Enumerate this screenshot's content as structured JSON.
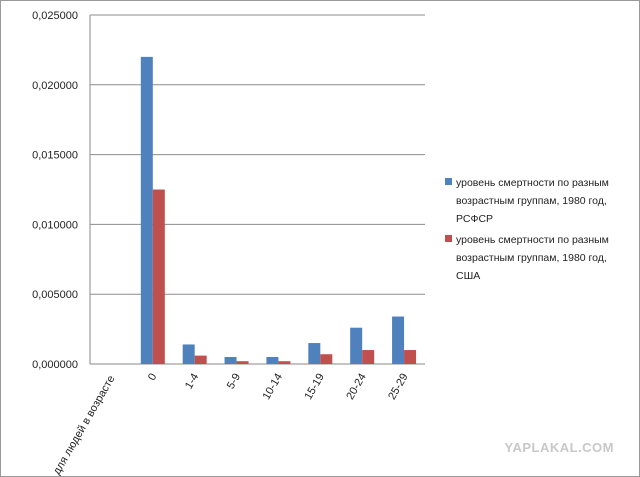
{
  "chart_data": {
    "type": "bar",
    "categories": [
      "0",
      "1-4",
      "5-9",
      "10-14",
      "15-19",
      "20-24",
      "25-29"
    ],
    "category_axis_label": "для людей в возрасте",
    "series": [
      {
        "name_lines": [
          "уровень смертности по разным",
          "возрастным группам, 1980 год,",
          "РСФСР"
        ],
        "color": "#4f81bd",
        "values": [
          0.022,
          0.0014,
          0.0005,
          0.0005,
          0.0015,
          0.0026,
          0.0034
        ]
      },
      {
        "name_lines": [
          "уровень смертности по разным",
          "возрастным группам, 1980 год,",
          "США"
        ],
        "color": "#c0504d",
        "values": [
          0.0125,
          0.0006,
          0.0002,
          0.0002,
          0.0007,
          0.001,
          0.001
        ]
      }
    ],
    "yticks": [
      "0,000000",
      "0,005000",
      "0,010000",
      "0,015000",
      "0,020000",
      "0,025000"
    ],
    "ylim": [
      0,
      0.025
    ],
    "grid": true,
    "legend_position": "right"
  },
  "watermark": "YAPLAKAL.COM"
}
